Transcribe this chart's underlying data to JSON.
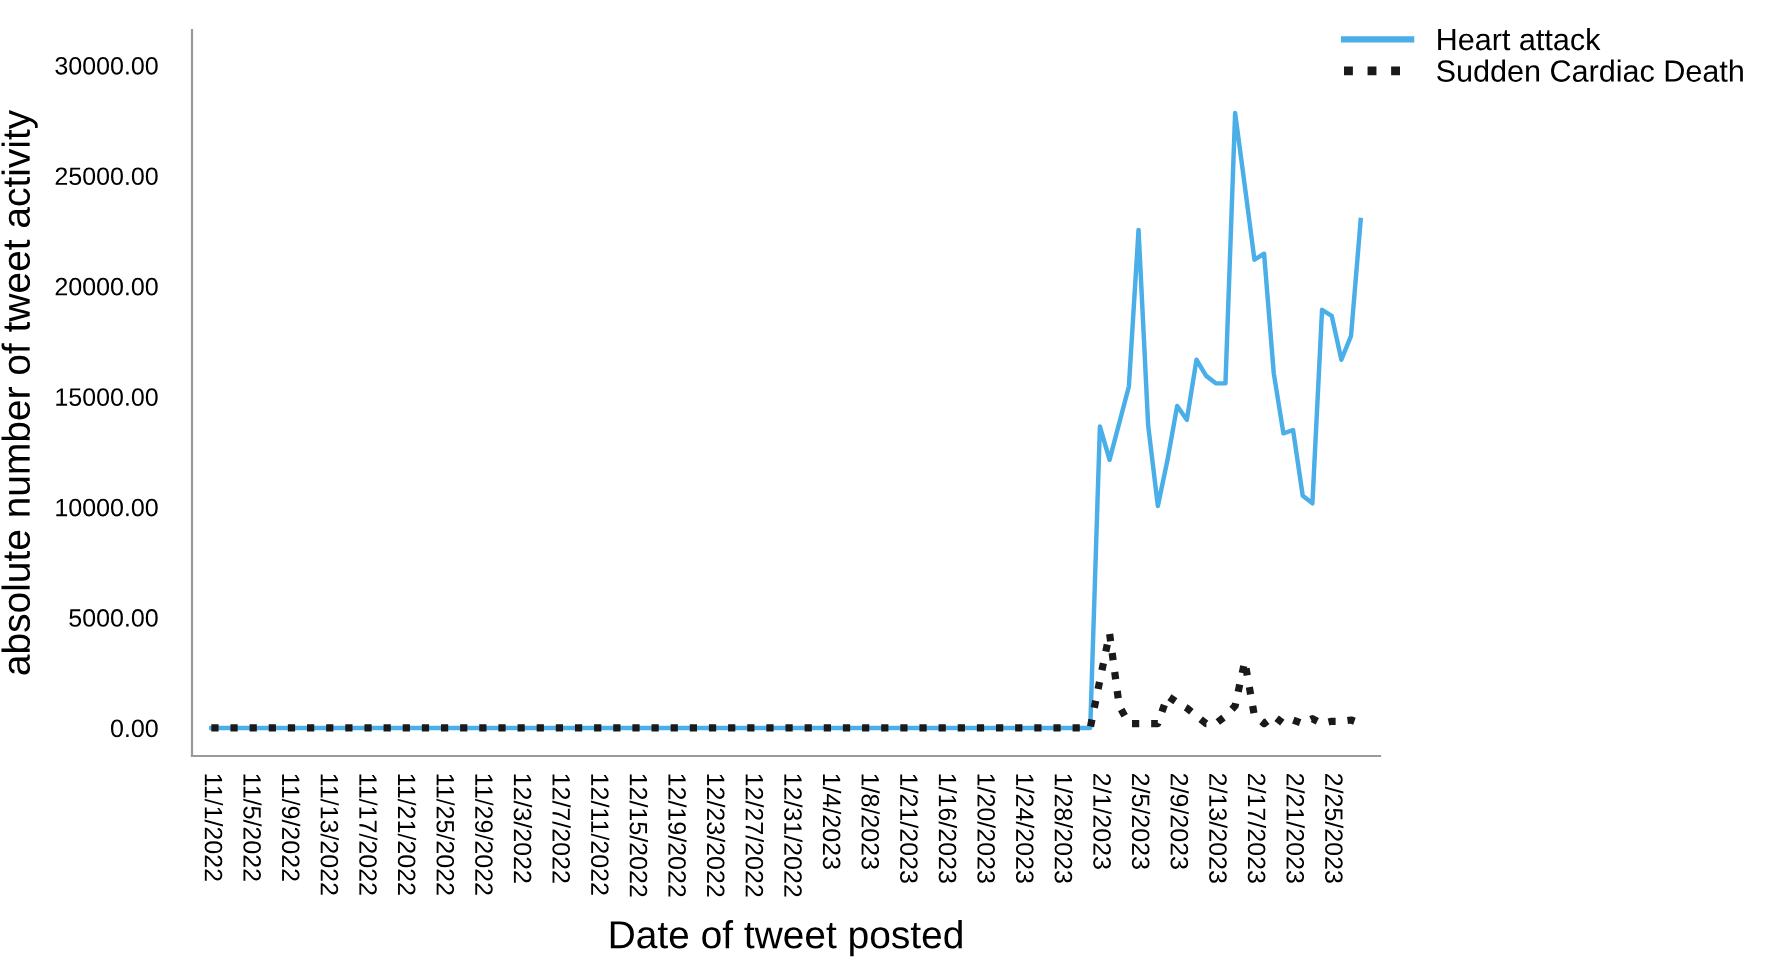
{
  "chart_data": {
    "type": "line",
    "xlabel": "Date of tweet posted",
    "ylabel": "absolute number of tweet activity",
    "categories": [
      "11/1/2022",
      null,
      null,
      null,
      "11/5/2022",
      null,
      null,
      null,
      "11/9/2022",
      null,
      null,
      null,
      "11/13/2022",
      null,
      null,
      null,
      "11/17/2022",
      null,
      null,
      null,
      "11/21/2022",
      null,
      null,
      null,
      "11/25/2022",
      null,
      null,
      null,
      "11/29/2022",
      null,
      null,
      null,
      "12/3/2022",
      null,
      null,
      null,
      "12/7/2022",
      null,
      null,
      null,
      "12/11/2022",
      null,
      null,
      null,
      "12/15/2022",
      null,
      null,
      null,
      "12/19/2022",
      null,
      null,
      null,
      "12/23/2022",
      null,
      null,
      null,
      "12/27/2022",
      null,
      null,
      null,
      "12/31/2022",
      null,
      null,
      null,
      "1/4/2023",
      null,
      null,
      null,
      "1/8/2023",
      null,
      null,
      null,
      "1/21/2023",
      null,
      null,
      null,
      "1/16/2023",
      null,
      null,
      null,
      "1/20/2023",
      null,
      null,
      null,
      "1/24/2023",
      null,
      null,
      null,
      "1/28/2023",
      null,
      null,
      null,
      "2/1/2023",
      null,
      null,
      null,
      "2/5/2023",
      null,
      null,
      null,
      "2/9/2023",
      null,
      null,
      null,
      "2/13/2023",
      null,
      null,
      null,
      "2/17/2023",
      null,
      null,
      null,
      "2/21/2023",
      null,
      null,
      null,
      "2/25/2023",
      null,
      null,
      null
    ],
    "series": [
      {
        "name": "Heart attack",
        "color": "#4aaee8",
        "line_style": "solid",
        "values": [
          0,
          0,
          0,
          0,
          0,
          0,
          0,
          0,
          0,
          0,
          0,
          0,
          0,
          0,
          0,
          0,
          0,
          0,
          0,
          0,
          0,
          0,
          0,
          0,
          0,
          0,
          0,
          0,
          0,
          0,
          0,
          0,
          0,
          0,
          0,
          0,
          0,
          0,
          0,
          0,
          0,
          0,
          0,
          0,
          0,
          0,
          0,
          0,
          0,
          0,
          0,
          0,
          0,
          0,
          0,
          0,
          0,
          0,
          0,
          0,
          0,
          0,
          0,
          0,
          0,
          0,
          0,
          0,
          0,
          0,
          0,
          0,
          0,
          0,
          0,
          0,
          0,
          0,
          0,
          0,
          0,
          0,
          0,
          0,
          0,
          0,
          0,
          0,
          0,
          0,
          0,
          0,
          13650,
          12140,
          13800,
          15460,
          22550,
          13680,
          10050,
          12140,
          14580,
          13950,
          16670,
          15940,
          15610,
          15600,
          27840,
          24550,
          21200,
          21470,
          16060,
          13340,
          13490,
          10510,
          10170,
          18930,
          18660,
          16670,
          17750,
          23000
        ]
      },
      {
        "name": "Sudden Cardiac Death",
        "color": "#1a1a1a",
        "line_style": "dotted",
        "values": [
          0,
          0,
          0,
          0,
          0,
          0,
          0,
          0,
          0,
          0,
          0,
          0,
          0,
          0,
          0,
          0,
          0,
          0,
          0,
          0,
          0,
          0,
          0,
          0,
          0,
          0,
          0,
          0,
          0,
          0,
          0,
          0,
          0,
          0,
          0,
          0,
          0,
          0,
          0,
          0,
          0,
          0,
          0,
          0,
          0,
          0,
          0,
          0,
          0,
          0,
          0,
          0,
          0,
          0,
          0,
          0,
          0,
          0,
          0,
          0,
          0,
          0,
          0,
          0,
          0,
          0,
          0,
          0,
          0,
          0,
          0,
          0,
          0,
          0,
          0,
          0,
          0,
          0,
          0,
          0,
          0,
          0,
          0,
          0,
          0,
          0,
          0,
          0,
          0,
          0,
          0,
          0,
          2170,
          4280,
          1000,
          200,
          200,
          200,
          200,
          1450,
          1150,
          900,
          540,
          200,
          200,
          540,
          1000,
          3020,
          540,
          200,
          540,
          200,
          360,
          200,
          420,
          200,
          300,
          300,
          360,
          200
        ]
      }
    ],
    "ylim": [
      -1270,
      31600
    ],
    "yticks": [
      {
        "value": 0,
        "label": "0.00"
      },
      {
        "value": 5000,
        "label": "5000.00"
      },
      {
        "value": 10000,
        "label": "10000.00"
      },
      {
        "value": 15000,
        "label": "15000.00"
      },
      {
        "value": 20000,
        "label": "20000.00"
      },
      {
        "value": 25000,
        "label": "25000.00"
      },
      {
        "value": 30000,
        "label": "30000.00"
      }
    ],
    "grid": false,
    "legend": "top right",
    "marker": "none"
  }
}
